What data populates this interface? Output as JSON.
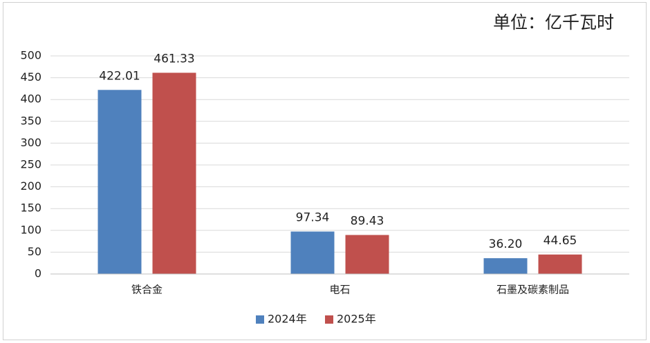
{
  "chart_data": {
    "type": "bar",
    "title": "单位：亿千瓦时",
    "categories": [
      "铁合金",
      "电石",
      "石墨及碳素制品"
    ],
    "series": [
      {
        "name": "2024年",
        "color": "#4f81bd",
        "values": [
          422.01,
          97.34,
          36.2
        ],
        "value_labels": [
          "422.01",
          "97.34",
          "36.20"
        ]
      },
      {
        "name": "2025年",
        "color": "#c0504d",
        "values": [
          461.33,
          89.43,
          44.65
        ],
        "value_labels": [
          "461.33",
          "89.43",
          "44.65"
        ]
      }
    ],
    "ylim": [
      0,
      500
    ],
    "yticks": [
      0,
      50,
      100,
      150,
      200,
      250,
      300,
      350,
      400,
      450,
      500
    ],
    "grid": true,
    "legend": "bottom"
  }
}
